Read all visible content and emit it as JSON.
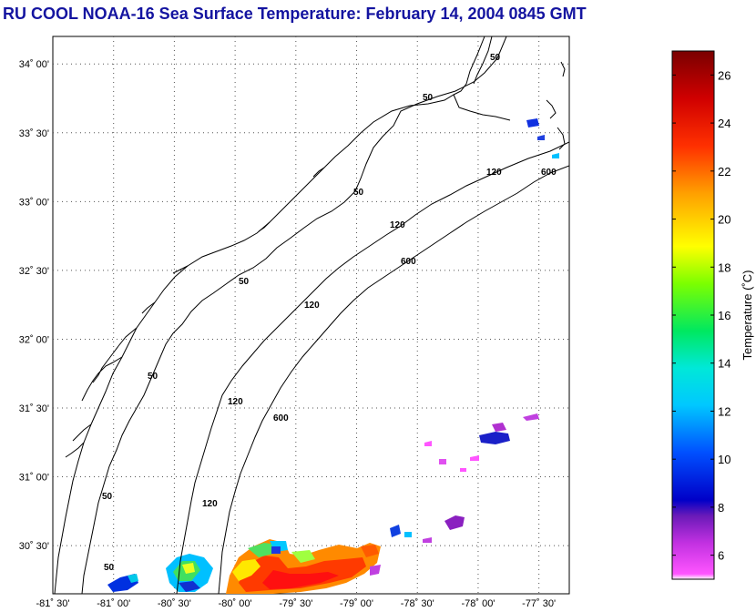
{
  "title": "RU COOL  NOAA-16  Sea Surface Temperature:  February 14, 2004 0845 GMT",
  "map": {
    "lat_labels": [
      "34˚ 00'",
      "33˚ 30'",
      "33˚ 00'",
      "32˚ 30'",
      "32˚ 00'",
      "31˚ 30'",
      "31˚ 00'",
      "30˚ 30'"
    ],
    "lat_values": [
      34.0,
      33.5,
      33.0,
      32.5,
      32.0,
      31.5,
      31.0,
      30.5
    ],
    "lon_labels": [
      "-81˚ 30'",
      "-81˚ 00'",
      "-80˚ 30'",
      "-80˚ 00'",
      "-79˚ 30'",
      "-79˚ 00'",
      "-78˚ 30'",
      "-78˚ 00'",
      "-77˚ 30'"
    ],
    "lon_values": [
      -81.5,
      -81.0,
      -80.5,
      -80.0,
      -79.5,
      -79.0,
      -78.5,
      -78.0,
      -77.5
    ],
    "lon_range": [
      -81.5,
      -77.25
    ],
    "lat_range": [
      30.15,
      34.2
    ],
    "grid": "dotted",
    "isobath_labels": [
      "50",
      "50",
      "50",
      "50",
      "50",
      "50",
      "50",
      "120",
      "120",
      "120",
      "120",
      "120",
      "600",
      "600",
      "600"
    ]
  },
  "colorbar": {
    "label": "Temperature (˚C)",
    "ticks": [
      "26",
      "24",
      "22",
      "20",
      "18",
      "16",
      "14",
      "12",
      "10",
      "8",
      "6"
    ],
    "tick_values": [
      26,
      24,
      22,
      20,
      18,
      16,
      14,
      12,
      10,
      8,
      6
    ],
    "range": [
      5,
      27
    ]
  }
}
